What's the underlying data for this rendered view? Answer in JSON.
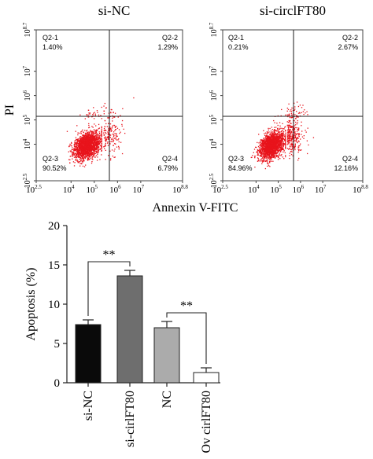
{
  "chart_data": [
    {
      "type": "scatter",
      "title": "si-NC",
      "xlabel": "Annexin V-FITC",
      "ylabel": "PI",
      "x_scale": "log",
      "y_scale": "log",
      "xlim_log10": [
        2.5,
        8.8
      ],
      "ylim_log10": [
        2.5,
        8.7
      ],
      "x_ticks": [
        {
          "base": "10",
          "exp": "2.5"
        },
        {
          "base": "10",
          "exp": "4"
        },
        {
          "base": "10",
          "exp": "5"
        },
        {
          "base": "10",
          "exp": "6"
        },
        {
          "base": "10",
          "exp": "7"
        },
        {
          "base": "10",
          "exp": "8.8"
        }
      ],
      "y_ticks": [
        {
          "base": "10",
          "exp": "2.5"
        },
        {
          "base": "10",
          "exp": "4"
        },
        {
          "base": "10",
          "exp": "5"
        },
        {
          "base": "10",
          "exp": "6"
        },
        {
          "base": "10",
          "exp": "7"
        },
        {
          "base": "10",
          "exp": "8.7"
        }
      ],
      "gate_x_log10": 5.35,
      "gate_y_log10": 5.0,
      "quadrants": [
        {
          "name": "Q2-1",
          "value": "1.40%",
          "pos": "top-left"
        },
        {
          "name": "Q2-2",
          "value": "1.29%",
          "pos": "top-right"
        },
        {
          "name": "Q2-3",
          "value": "90.52%",
          "pos": "bottom-left"
        },
        {
          "name": "Q2-4",
          "value": "6.79%",
          "pos": "bottom-right"
        }
      ],
      "dot_color": "#e8141c"
    },
    {
      "type": "scatter",
      "title": "si-circlFT80",
      "xlabel": "Annexin V-FITC",
      "ylabel": "PI",
      "x_scale": "log",
      "y_scale": "log",
      "xlim_log10": [
        2.5,
        8.8
      ],
      "ylim_log10": [
        2.5,
        8.7
      ],
      "x_ticks": [
        {
          "base": "10",
          "exp": "2.5"
        },
        {
          "base": "10",
          "exp": "4"
        },
        {
          "base": "10",
          "exp": "5"
        },
        {
          "base": "10",
          "exp": "6"
        },
        {
          "base": "10",
          "exp": "7"
        },
        {
          "base": "10",
          "exp": "8.8"
        }
      ],
      "y_ticks": [
        {
          "base": "10",
          "exp": "2.5"
        },
        {
          "base": "10",
          "exp": "4"
        },
        {
          "base": "10",
          "exp": "5"
        },
        {
          "base": "10",
          "exp": "6"
        },
        {
          "base": "10",
          "exp": "7"
        },
        {
          "base": "10",
          "exp": "8.7"
        }
      ],
      "gate_x_log10": 5.35,
      "gate_y_log10": 5.0,
      "quadrants": [
        {
          "name": "Q2-1",
          "value": "0.21%",
          "pos": "top-left"
        },
        {
          "name": "Q2-2",
          "value": "2.67%",
          "pos": "top-right"
        },
        {
          "name": "Q2-3",
          "value": "84.96%",
          "pos": "bottom-left"
        },
        {
          "name": "Q2-4",
          "value": "12.16%",
          "pos": "bottom-right"
        }
      ],
      "dot_color": "#e8141c"
    },
    {
      "type": "bar",
      "ylabel": "Apoptosis (%)",
      "ylim": [
        0,
        20
      ],
      "yticks": [
        "0",
        "5",
        "10",
        "15",
        "20"
      ],
      "categories": [
        "si-NC",
        "si-cirlFT80",
        "NC",
        "Ov cirlFT80"
      ],
      "values": [
        7.4,
        13.6,
        7.0,
        1.3
      ],
      "errors": [
        0.6,
        0.7,
        0.8,
        0.6
      ],
      "bar_colors": [
        "#0a0a0a",
        "#6e6e6e",
        "#ababab",
        "#ffffff"
      ],
      "significance": [
        {
          "from": 0,
          "to": 1,
          "label": "**"
        },
        {
          "from": 2,
          "to": 3,
          "label": "**"
        }
      ]
    }
  ]
}
